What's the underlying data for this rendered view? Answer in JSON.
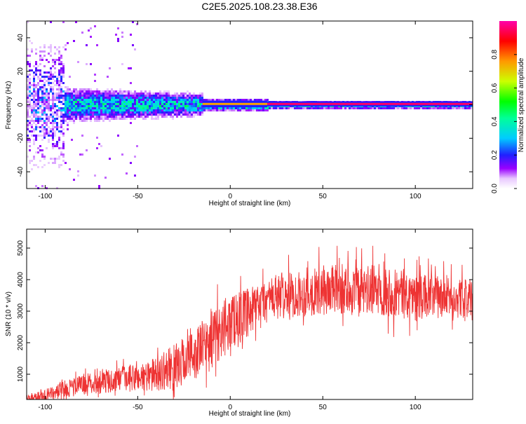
{
  "title": "C2E5.2025.108.23.38.E36",
  "colors": {
    "frame": "#000000",
    "snr_line": "#ee3333"
  },
  "chart_data": [
    {
      "type": "heatmap",
      "xlabel": "Height of straight line (km)",
      "ylabel": "Frequency (Hz)",
      "xlim": [
        -110,
        131
      ],
      "ylim": [
        -50,
        50
      ],
      "xticks": [
        -100,
        -50,
        0,
        50,
        100
      ],
      "xtick_labels": [
        "-100",
        "-50",
        "0",
        "50",
        "100"
      ],
      "yticks": [
        40,
        20,
        0,
        -20,
        -40
      ],
      "ytick_labels": [
        "40",
        "20",
        "0",
        "-20",
        "-40"
      ],
      "colorbar": {
        "label": "Normalized spectral amplitude",
        "range": [
          0,
          1
        ],
        "ticks": [
          0.0,
          0.2,
          0.4,
          0.6,
          0.8
        ],
        "tick_labels": [
          "0.0",
          "0.2",
          "0.4",
          "0.6",
          "0.8"
        ]
      },
      "tone": {
        "frequency_hz": 0.5,
        "start_km": -15,
        "description_segments": [
          {
            "x0": -110,
            "x1": -15,
            "halfwidth_hz": 7,
            "amplitude": 0.35
          },
          {
            "x0": -15,
            "x1": 20,
            "halfwidth_hz": 2,
            "amplitude": 0.75
          },
          {
            "x0": 20,
            "x1": 131,
            "halfwidth_hz": 1.5,
            "amplitude": 0.95
          }
        ]
      },
      "grid": false
    },
    {
      "type": "line",
      "xlabel": "Height of straight line (km)",
      "ylabel": "SNR (10 * v/v)",
      "xlim": [
        -110,
        131
      ],
      "ylim": [
        200,
        5600
      ],
      "xticks": [
        -100,
        -50,
        0,
        50,
        100
      ],
      "xtick_labels": [
        "-100",
        "-50",
        "0",
        "50",
        "100"
      ],
      "yticks": [
        1000,
        2000,
        3000,
        4000,
        5000
      ],
      "ytick_labels": [
        "1000",
        "2000",
        "3000",
        "4000",
        "5000"
      ],
      "series": [
        {
          "x": [
            -110,
            -100,
            -90,
            -80,
            -70,
            -60,
            -50,
            -40,
            -30,
            -20,
            -10,
            0,
            10,
            20,
            30,
            40,
            50,
            60,
            70,
            80,
            90,
            100,
            110,
            120,
            131
          ],
          "mean": [
            250,
            320,
            520,
            680,
            760,
            830,
            900,
            1000,
            1250,
            1600,
            2100,
            2700,
            2900,
            3350,
            3500,
            3550,
            3650,
            3700,
            3600,
            3700,
            3600,
            3500,
            3450,
            3400,
            3400
          ],
          "spread": [
            150,
            200,
            300,
            350,
            400,
            450,
            500,
            600,
            800,
            900,
            1000,
            1000,
            900,
            800,
            800,
            800,
            900,
            900,
            900,
            900,
            900,
            800,
            800,
            700,
            700
          ],
          "color": "#ee3333"
        }
      ],
      "grid": false
    }
  ]
}
